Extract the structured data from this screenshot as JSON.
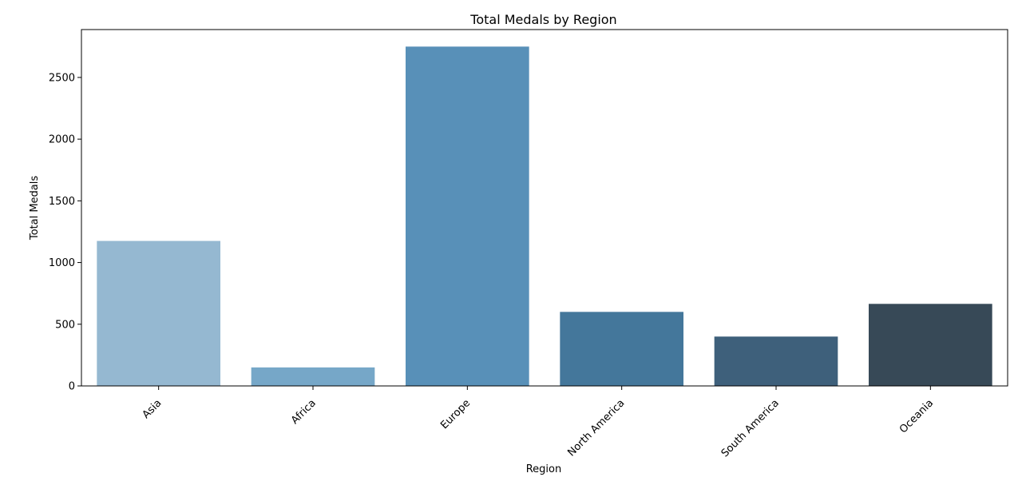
{
  "chart_data": {
    "type": "bar",
    "title": "Total Medals by Region",
    "xlabel": "Region",
    "ylabel": "Total Medals",
    "categories": [
      "Asia",
      "Africa",
      "Europe",
      "North America",
      "South America",
      "Oceania"
    ],
    "values": [
      1175,
      150,
      2750,
      600,
      400,
      665
    ],
    "colors": [
      "#95b8d1",
      "#76a7c8",
      "#5890b8",
      "#44779b",
      "#3e607b",
      "#374957"
    ],
    "ylim": [
      0,
      2888
    ],
    "yticks": [
      0,
      500,
      1000,
      1500,
      2000,
      2500
    ],
    "ytick_labels": [
      "0",
      "500",
      "1000",
      "1500",
      "2000",
      "2500"
    ],
    "grid": false,
    "legend": "none"
  }
}
